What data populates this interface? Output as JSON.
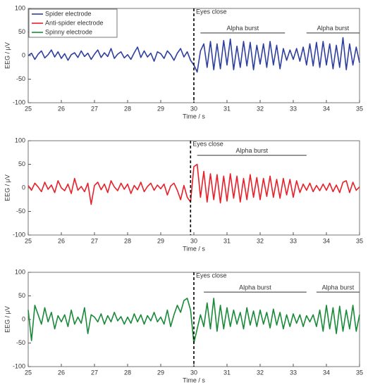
{
  "chart_data": [
    {
      "type": "line",
      "ylabel": "EEG /  μV",
      "xlabel": "Time /  s",
      "legend": "upper left",
      "xlim": [
        25,
        35
      ],
      "xticks": [
        25,
        26,
        27,
        28,
        29,
        30,
        31,
        32,
        33,
        34,
        35
      ],
      "ylim": [
        -100,
        100
      ],
      "yticks": [
        -100,
        -50,
        0,
        50,
        100
      ],
      "x": [
        25,
        25.1,
        25.2,
        25.3,
        25.4,
        25.5,
        25.6,
        25.7,
        25.8,
        25.9,
        26,
        26.1,
        26.2,
        26.3,
        26.4,
        26.5,
        26.6,
        26.7,
        26.8,
        26.9,
        27,
        27.1,
        27.2,
        27.3,
        27.4,
        27.5,
        27.6,
        27.7,
        27.8,
        27.9,
        28,
        28.1,
        28.2,
        28.3,
        28.4,
        28.5,
        28.6,
        28.7,
        28.8,
        28.9,
        29,
        29.1,
        29.2,
        29.3,
        29.4,
        29.5,
        29.6,
        29.7,
        29.8,
        29.9,
        30,
        30.1,
        30.2,
        30.3,
        30.4,
        30.5,
        30.6,
        30.7,
        30.8,
        30.9,
        31,
        31.1,
        31.2,
        31.3,
        31.4,
        31.5,
        31.6,
        31.7,
        31.8,
        31.9,
        32,
        32.1,
        32.2,
        32.3,
        32.4,
        32.5,
        32.6,
        32.7,
        32.8,
        32.9,
        33,
        33.1,
        33.2,
        33.3,
        33.4,
        33.5,
        33.6,
        33.7,
        33.8,
        33.9,
        34,
        34.1,
        34.2,
        34.3,
        34.4,
        34.5,
        34.6,
        34.7,
        34.8,
        34.9,
        35
      ],
      "series": [
        {
          "name": "Spider electrode",
          "color": "#2e3f9e",
          "values": [
            0,
            5,
            -8,
            3,
            10,
            -5,
            2,
            12,
            -3,
            8,
            -6,
            4,
            -10,
            2,
            6,
            -4,
            10,
            -2,
            5,
            -8,
            3,
            12,
            -4,
            6,
            -2,
            15,
            -6,
            3,
            8,
            -5,
            2,
            -8,
            6,
            18,
            -4,
            10,
            -3,
            5,
            -12,
            8,
            4,
            -6,
            10,
            2,
            -10,
            5,
            15,
            -3,
            8,
            -10,
            -20,
            -35,
            10,
            25,
            -25,
            30,
            -30,
            25,
            -28,
            32,
            -20,
            35,
            -30,
            20,
            -25,
            30,
            -22,
            28,
            -30,
            22,
            -18,
            25,
            -25,
            30,
            -20,
            22,
            -28,
            15,
            -10,
            12,
            -8,
            15,
            -12,
            18,
            -20,
            25,
            -22,
            28,
            -25,
            30,
            -20,
            25,
            -28,
            22,
            -25,
            38,
            -30,
            25,
            -20,
            18,
            -15
          ]
        }
      ],
      "annotations": [
        {
          "text": "Eyes close",
          "x": 30,
          "y": 92
        }
      ],
      "bursts": [
        {
          "text": "Alpha burst",
          "x": 30.2,
          "x_end": 32.75,
          "y": 48
        },
        {
          "text": "Alpha burst",
          "x": 33.4,
          "x_end": 35,
          "y": 48
        }
      ]
    },
    {
      "type": "line",
      "ylabel": "EEG /  μV",
      "xlabel": "Time /  s",
      "xlim": [
        25,
        35
      ],
      "xticks": [
        25,
        26,
        27,
        28,
        29,
        30,
        31,
        32,
        33,
        34,
        35
      ],
      "ylim": [
        -100,
        100
      ],
      "yticks": [
        -100,
        -50,
        0,
        50,
        100
      ],
      "x": [
        25,
        25.1,
        25.2,
        25.3,
        25.4,
        25.5,
        25.6,
        25.7,
        25.8,
        25.9,
        26,
        26.1,
        26.2,
        26.3,
        26.4,
        26.5,
        26.6,
        26.7,
        26.8,
        26.9,
        27,
        27.1,
        27.2,
        27.3,
        27.4,
        27.5,
        27.6,
        27.7,
        27.8,
        27.9,
        28,
        28.1,
        28.2,
        28.3,
        28.4,
        28.5,
        28.6,
        28.7,
        28.8,
        28.9,
        29,
        29.1,
        29.2,
        29.3,
        29.4,
        29.5,
        29.6,
        29.7,
        29.8,
        29.9,
        30,
        30.1,
        30.2,
        30.3,
        30.4,
        30.5,
        30.6,
        30.7,
        30.8,
        30.9,
        31,
        31.1,
        31.2,
        31.3,
        31.4,
        31.5,
        31.6,
        31.7,
        31.8,
        31.9,
        32,
        32.1,
        32.2,
        32.3,
        32.4,
        32.5,
        32.6,
        32.7,
        32.8,
        32.9,
        33,
        33.1,
        33.2,
        33.3,
        33.4,
        33.5,
        33.6,
        33.7,
        33.8,
        33.9,
        34,
        34.1,
        34.2,
        34.3,
        34.4,
        34.5,
        34.6,
        34.7,
        34.8,
        34.9,
        35
      ],
      "series": [
        {
          "name": "Anti-spider electrode",
          "color": "#e8202a",
          "values": [
            5,
            -5,
            10,
            2,
            -8,
            12,
            -3,
            6,
            -10,
            15,
            0,
            -6,
            8,
            -12,
            20,
            -5,
            3,
            -8,
            10,
            -35,
            5,
            12,
            -4,
            8,
            -10,
            15,
            2,
            -6,
            10,
            -3,
            8,
            -12,
            5,
            -4,
            12,
            -8,
            3,
            10,
            -5,
            6,
            -2,
            8,
            -15,
            4,
            10,
            -5,
            -25,
            5,
            -20,
            -30,
            45,
            50,
            -20,
            35,
            -30,
            30,
            -25,
            28,
            -32,
            25,
            -28,
            30,
            -22,
            25,
            -30,
            20,
            -25,
            28,
            -20,
            22,
            -25,
            20,
            -18,
            25,
            -20,
            18,
            -22,
            20,
            -15,
            18,
            -20,
            15,
            -10,
            8,
            -5,
            10,
            -8,
            5,
            -6,
            8,
            -5,
            10,
            -8,
            6,
            -10,
            12,
            15,
            -10,
            12,
            -5,
            2
          ]
        }
      ],
      "annotations": [
        {
          "text": "Eyes close",
          "x": 29.9,
          "y": 92
        }
      ],
      "bursts": [
        {
          "text": "Alpha burst",
          "x": 30.1,
          "x_end": 33.4,
          "y": 69
        }
      ]
    },
    {
      "type": "line",
      "ylabel": "EEG /  μV",
      "xlabel": "Time /  s",
      "xlim": [
        25,
        35
      ],
      "xticks": [
        25,
        26,
        27,
        28,
        29,
        30,
        31,
        32,
        33,
        34,
        35
      ],
      "ylim": [
        -100,
        100
      ],
      "yticks": [
        -100,
        -50,
        0,
        50,
        100
      ],
      "x": [
        25,
        25.1,
        25.2,
        25.3,
        25.4,
        25.5,
        25.6,
        25.7,
        25.8,
        25.9,
        26,
        26.1,
        26.2,
        26.3,
        26.4,
        26.5,
        26.6,
        26.7,
        26.8,
        26.9,
        27,
        27.1,
        27.2,
        27.3,
        27.4,
        27.5,
        27.6,
        27.7,
        27.8,
        27.9,
        28,
        28.1,
        28.2,
        28.3,
        28.4,
        28.5,
        28.6,
        28.7,
        28.8,
        28.9,
        29,
        29.1,
        29.2,
        29.3,
        29.4,
        29.5,
        29.6,
        29.7,
        29.8,
        29.9,
        30,
        30.1,
        30.2,
        30.3,
        30.4,
        30.5,
        30.6,
        30.7,
        30.8,
        30.9,
        31,
        31.1,
        31.2,
        31.3,
        31.4,
        31.5,
        31.6,
        31.7,
        31.8,
        31.9,
        32,
        32.1,
        32.2,
        32.3,
        32.4,
        32.5,
        32.6,
        32.7,
        32.8,
        32.9,
        33,
        33.1,
        33.2,
        33.3,
        33.4,
        33.5,
        33.6,
        33.7,
        33.8,
        33.9,
        34,
        34.1,
        34.2,
        34.3,
        34.4,
        34.5,
        34.6,
        34.7,
        34.8,
        34.9,
        35
      ],
      "series": [
        {
          "name": "Spinny electrode",
          "color": "#1a8a3a",
          "values": [
            20,
            -45,
            30,
            10,
            -10,
            25,
            -5,
            15,
            -20,
            8,
            -5,
            10,
            -15,
            20,
            -10,
            5,
            -8,
            25,
            -30,
            10,
            5,
            -5,
            12,
            -10,
            8,
            -5,
            15,
            -3,
            6,
            -10,
            5,
            -8,
            12,
            -5,
            10,
            -10,
            8,
            -3,
            15,
            -5,
            5,
            -10,
            20,
            -15,
            10,
            30,
            15,
            40,
            45,
            20,
            -50,
            -20,
            10,
            -15,
            35,
            -20,
            45,
            -25,
            30,
            -20,
            25,
            -15,
            20,
            -10,
            15,
            -20,
            25,
            -12,
            18,
            -15,
            20,
            -10,
            15,
            -18,
            22,
            -12,
            15,
            -20,
            10,
            -15,
            12,
            -8,
            10,
            -15,
            8,
            -5,
            10,
            -15,
            20,
            -25,
            30,
            -20,
            25,
            -30,
            28,
            -25,
            20,
            -20,
            30,
            -25,
            10
          ]
        }
      ],
      "annotations": [
        {
          "text": "Eyes close",
          "x": 30,
          "y": 92
        }
      ],
      "bursts": [
        {
          "text": "Alpha burst",
          "x": 30.3,
          "x_end": 33.4,
          "y": 58
        },
        {
          "text": "Alpha burst",
          "x": 33.7,
          "x_end": 35,
          "y": 58
        }
      ]
    }
  ]
}
